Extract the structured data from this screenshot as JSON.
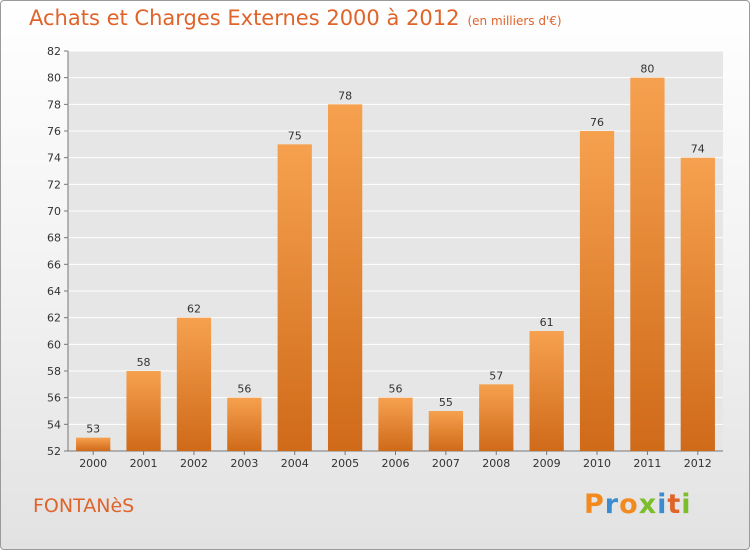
{
  "header": {
    "title": "Achats et Charges Externes 2000 à 2012",
    "subtitle": "(en milliers d'€)"
  },
  "footer": {
    "city": "FONTANèS",
    "logo": "Proxiti"
  },
  "colors": {
    "title": "#e0632a",
    "bar_light": "#f6a14f",
    "bar_dark": "#cf6a19",
    "logo_letters": [
      "#f28a1f",
      "#3a8bd0",
      "#f28a1f",
      "#7cbd2a",
      "#3a8bd0",
      "#e0632a",
      "#7cbd2a"
    ]
  },
  "chart_data": {
    "type": "bar",
    "title": "Achats et Charges Externes 2000 à 2012",
    "subtitle": "(en milliers d'€)",
    "xlabel": "",
    "ylabel": "",
    "categories": [
      "2000",
      "2001",
      "2002",
      "2003",
      "2004",
      "2005",
      "2006",
      "2007",
      "2008",
      "2009",
      "2010",
      "2011",
      "2012"
    ],
    "values": [
      53,
      58,
      62,
      56,
      75,
      78,
      56,
      55,
      57,
      61,
      76,
      80,
      74
    ],
    "ylim": [
      52,
      82
    ],
    "yticks": [
      52,
      54,
      56,
      58,
      60,
      62,
      64,
      66,
      68,
      70,
      72,
      74,
      76,
      78,
      80,
      82
    ],
    "grid": true,
    "legend": "none"
  }
}
